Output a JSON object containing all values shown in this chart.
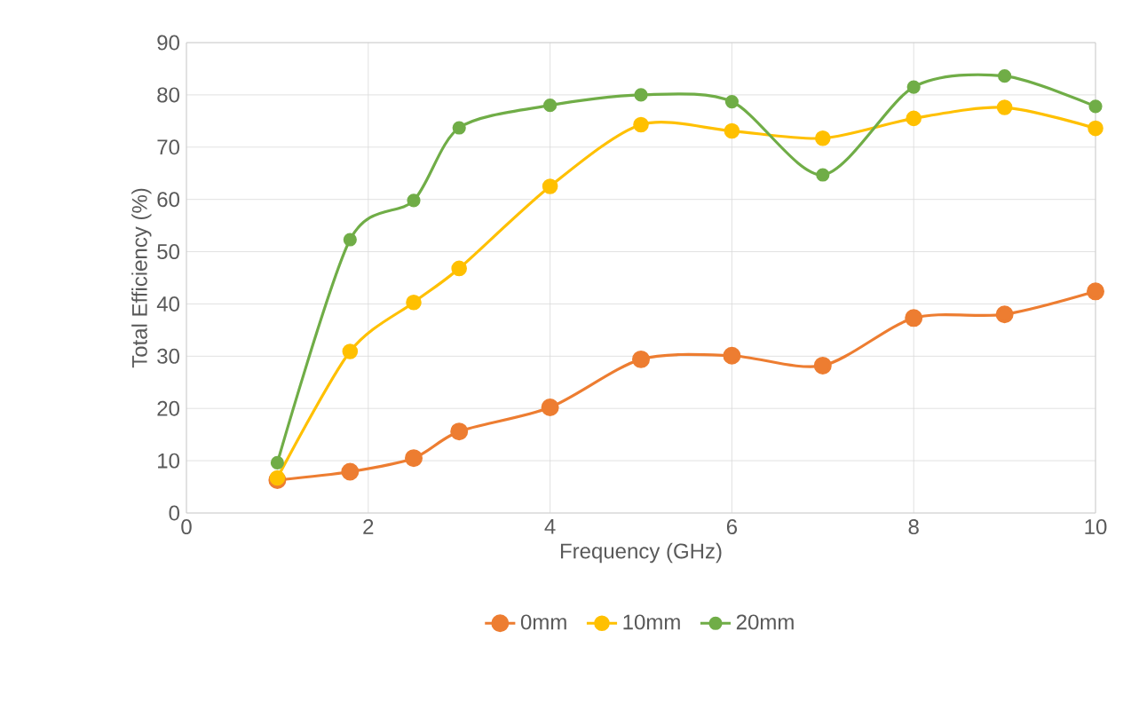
{
  "chart_data": {
    "type": "line",
    "xlabel": "Frequency (GHz)",
    "ylabel": "Total Efficiency (%)",
    "xlim": [
      0,
      10
    ],
    "xticks": [
      0,
      2,
      4,
      6,
      8,
      10
    ],
    "ylim": [
      0,
      90
    ],
    "yticks": [
      0,
      10,
      20,
      30,
      40,
      50,
      60,
      70,
      80,
      90
    ],
    "grid": true,
    "legend": "bottom",
    "marker": "circle",
    "line_style": "solid",
    "x": [
      1,
      1.8,
      2.5,
      3,
      4,
      5,
      6,
      7,
      8,
      9,
      10
    ],
    "series": [
      {
        "name": "0mm",
        "color": "#ed7d31",
        "values": [
          6.3,
          7.9,
          10.5,
          15.6,
          20.2,
          29.4,
          30.1,
          28.2,
          37.3,
          38.0,
          42.4
        ]
      },
      {
        "name": "10mm",
        "color": "#ffc000",
        "values": [
          6.7,
          30.9,
          40.3,
          46.8,
          62.5,
          74.3,
          73.1,
          71.7,
          75.5,
          77.6,
          73.6
        ]
      },
      {
        "name": "20mm",
        "color": "#70ad47",
        "values": [
          9.6,
          52.3,
          59.8,
          73.7,
          78.0,
          80.0,
          78.7,
          64.7,
          81.5,
          83.6,
          77.8
        ]
      }
    ]
  }
}
